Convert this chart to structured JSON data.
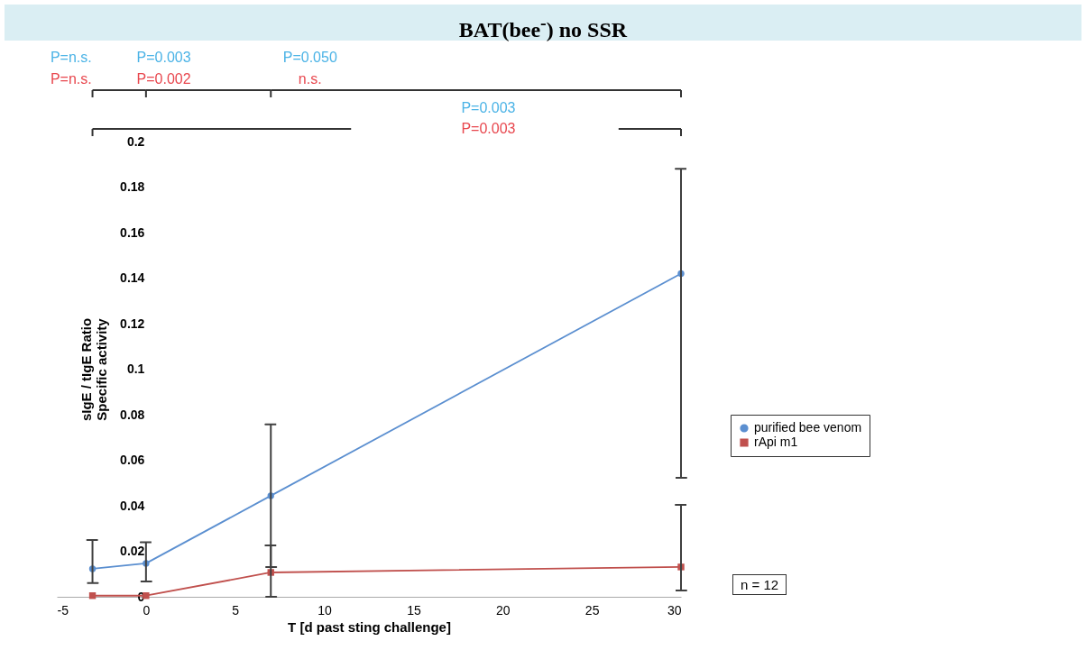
{
  "chart_data": {
    "type": "line",
    "title": "BAT(bee$^{-}$) no SSR",
    "xlabel": "T [d past sting challenge]",
    "ylabel": "sIgE / tIgE Ratio\nSpecific activity",
    "x": [
      -3,
      0,
      7,
      30
    ],
    "series": [
      {
        "name": "purified bee venom",
        "color": "#5b8fd0",
        "marker": "circle",
        "values": [
          0.0123,
          0.0147,
          0.0444,
          0.142
        ],
        "errors": [
          [
            0.006,
            0.025
          ],
          [
            0.0067,
            0.024
          ],
          [
            0.0131,
            0.0757
          ],
          [
            0.0523,
            0.188
          ]
        ]
      },
      {
        "name": "rApi m1",
        "color": "#c0504d",
        "marker": "square",
        "values": [
          0.0005,
          0.0005,
          0.0107,
          0.0131
        ],
        "errors": [
          null,
          null,
          [
            0,
            0.0226
          ],
          [
            0.0028,
            0.0404
          ]
        ]
      }
    ],
    "xlim": [
      -5,
      30
    ],
    "xticks": [
      -5,
      0,
      5,
      10,
      15,
      20,
      25,
      30
    ],
    "ylim": [
      0,
      0.2
    ],
    "yticks": [
      0,
      0.02,
      0.04,
      0.06,
      0.08,
      0.1,
      0.12,
      0.14,
      0.16,
      0.18,
      0.2
    ],
    "grid": false,
    "legend": "right",
    "annotations": [
      "P=n.s.",
      "P=n.s.",
      "P=0.003",
      "P=0.002",
      "P=0.050",
      "n.s.",
      "P=0.003",
      "P=0.003",
      "n = 12"
    ]
  }
}
